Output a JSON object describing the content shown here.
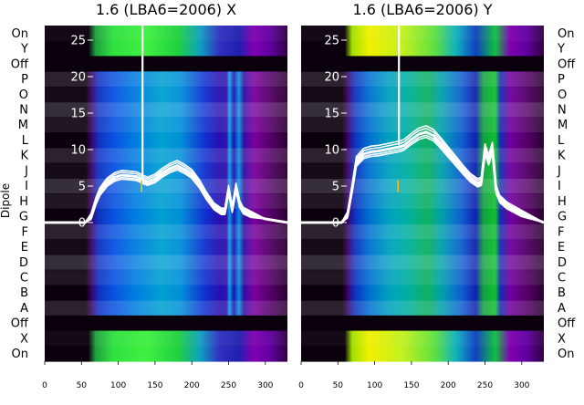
{
  "chart_data": [
    {
      "type": "heatmap",
      "title": "1.6 (LBA6=2006) X",
      "ylabel": "Dipole",
      "xticks": [
        "0",
        "50",
        "100",
        "150",
        "200",
        "250",
        "300"
      ],
      "xlim": [
        0,
        330
      ],
      "dipole_labels": [
        "On",
        "Y",
        "Off",
        "P",
        "O",
        "N",
        "M",
        "L",
        "K",
        "J",
        "I",
        "H",
        "G",
        "F",
        "E",
        "D",
        "C",
        "B",
        "A",
        "Off",
        "X",
        "On"
      ],
      "overlay_yticks": [
        "0",
        "5",
        "10",
        "15",
        "20",
        "25"
      ],
      "overlay_ylim": [
        -19,
        27
      ],
      "colors": {
        "band_black": "#0a000c",
        "spectrum_line": "#ffffff",
        "spike": "#f0c020"
      },
      "spectrum_x": [
        0,
        55,
        63,
        70,
        75,
        85,
        95,
        105,
        115,
        125,
        135,
        140,
        150,
        160,
        170,
        180,
        190,
        200,
        210,
        220,
        230,
        240,
        245,
        250,
        255,
        260,
        265,
        270,
        280,
        300,
        330
      ],
      "spectrum_y": [
        0,
        0,
        0.8,
        3,
        4.2,
        5.5,
        6.2,
        6.5,
        6.4,
        6.3,
        5.8,
        5.6,
        6,
        6.8,
        7.4,
        7.8,
        7.3,
        6.6,
        5.3,
        3.6,
        2.2,
        1.5,
        1.5,
        4.5,
        1.8,
        4.8,
        2.5,
        1.6,
        1.1,
        0.5,
        0
      ],
      "spike_x": 133,
      "spike_top": 27
    },
    {
      "type": "heatmap",
      "title": "1.6 (LBA6=2006) Y",
      "ylabel": "",
      "xticks": [
        "0",
        "50",
        "100",
        "150",
        "200",
        "250",
        "300"
      ],
      "xlim": [
        0,
        330
      ],
      "dipole_labels": [
        "On",
        "Y",
        "Off",
        "P",
        "O",
        "N",
        "M",
        "L",
        "K",
        "J",
        "I",
        "H",
        "G",
        "F",
        "E",
        "D",
        "C",
        "B",
        "A",
        "Off",
        "X",
        "On"
      ],
      "overlay_yticks": [
        "0",
        "5",
        "10",
        "15",
        "20",
        "25"
      ],
      "overlay_ylim": [
        -19,
        27
      ],
      "colors": {
        "band_black": "#0a000c",
        "spectrum_line": "#ffffff",
        "spike": "#f0c020"
      },
      "spectrum_x": [
        0,
        55,
        63,
        70,
        75,
        85,
        95,
        105,
        115,
        125,
        135,
        140,
        150,
        160,
        170,
        180,
        190,
        200,
        210,
        220,
        230,
        240,
        245,
        250,
        255,
        260,
        265,
        270,
        280,
        300,
        330
      ],
      "spectrum_y": [
        0,
        0,
        1,
        5,
        8.3,
        9.4,
        9.7,
        9.8,
        10,
        10.2,
        10.4,
        10.6,
        11.4,
        12.1,
        12.4,
        11.9,
        10.8,
        9.6,
        8.4,
        7.2,
        6.1,
        5.4,
        5.6,
        10,
        8.5,
        10.2,
        4.5,
        3.2,
        2.3,
        1.2,
        0
      ],
      "spike_x": 133,
      "spike_top": 27
    }
  ]
}
